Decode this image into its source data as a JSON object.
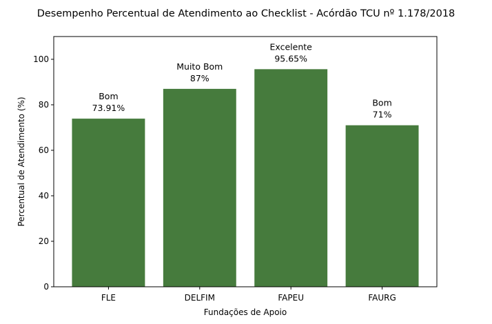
{
  "chart_data": {
    "type": "bar",
    "title": "Desempenho Percentual de Atendimento ao Checklist - Acórdão TCU nº 1.178/2018",
    "xlabel": "Fundações de Apoio",
    "ylabel": "Percentual de Atendimento (%)",
    "categories": [
      "FLE",
      "DELFIM",
      "FAPEU",
      "FAURG"
    ],
    "values": [
      73.91,
      87,
      95.65,
      71
    ],
    "ratings": [
      "Bom",
      "Muito Bom",
      "Excelente",
      "Bom"
    ],
    "value_labels": [
      "73.91%",
      "87%",
      "95.65%",
      "71%"
    ],
    "ylim": [
      0,
      110
    ],
    "yticks": [
      0,
      20,
      40,
      60,
      80,
      100
    ],
    "grid": false,
    "bar_color": "#467b3d"
  }
}
